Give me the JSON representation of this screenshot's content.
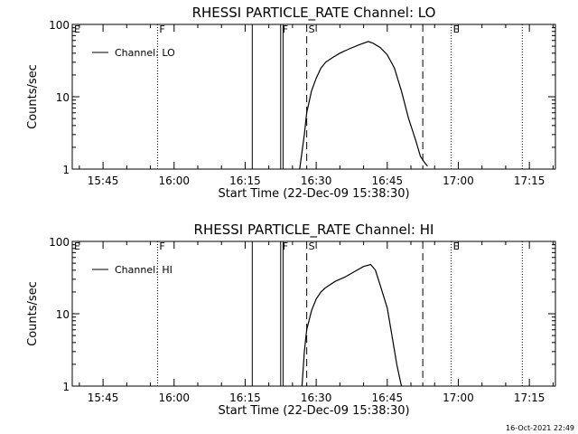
{
  "chart_data": [
    {
      "type": "line",
      "title": "RHESSI PARTICLE_RATE Channel: LO",
      "xlabel": "Start Time (22-Dec-09 15:38:30)",
      "ylabel": "Counts/sec",
      "y_scale": "log",
      "ylim": [
        1,
        100
      ],
      "xlim": [
        "15:38:30",
        "17:20:30"
      ],
      "x_ticks": [
        "15:45",
        "16:00",
        "16:15",
        "16:30",
        "16:45",
        "17:00",
        "17:15"
      ],
      "y_ticks": [
        "1",
        "10",
        "100"
      ],
      "legend": {
        "entries": [
          "Channel: LO"
        ],
        "placement": "top-left"
      },
      "grid": false,
      "markers": [
        {
          "time": "15:56:30",
          "label": "F",
          "style": "dotted"
        },
        {
          "time": "16:16:30",
          "label": "",
          "style": "solid"
        },
        {
          "time": "16:22:30",
          "label": "F",
          "style": "solid"
        },
        {
          "time": "16:23:00",
          "label": "",
          "style": "solid"
        },
        {
          "time": "16:28:00",
          "label": "S",
          "style": "dashed"
        },
        {
          "time": "16:52:30",
          "label": "",
          "style": "dashed"
        },
        {
          "time": "16:58:30",
          "label": "E",
          "style": "dotted"
        },
        {
          "time": "17:13:30",
          "label": "",
          "style": "dotted"
        }
      ],
      "edge_labels": [
        "E"
      ],
      "series": [
        {
          "x": [
            "16:26:30",
            "16:27:30",
            "16:28:00",
            "16:29:00",
            "16:30:00",
            "16:31:00",
            "16:32:00",
            "16:33:30",
            "16:35:00",
            "16:37:00",
            "16:39:00",
            "16:41:00",
            "16:42:00",
            "16:43:30",
            "16:45:00",
            "16:46:30",
            "16:48:00",
            "16:49:30",
            "16:51:00",
            "16:52:00",
            "16:53:00",
            "16:53:30"
          ],
          "values": [
            1,
            3,
            6,
            12,
            18,
            25,
            30,
            35,
            40,
            46,
            52,
            58,
            55,
            48,
            38,
            25,
            12,
            5,
            2.5,
            1.5,
            1.2,
            1.1
          ]
        }
      ]
    },
    {
      "type": "line",
      "title": "RHESSI PARTICLE_RATE Channel: HI",
      "xlabel": "Start Time (22-Dec-09 15:38:30)",
      "ylabel": "Counts/sec",
      "y_scale": "log",
      "ylim": [
        1,
        100
      ],
      "xlim": [
        "15:38:30",
        "17:20:30"
      ],
      "x_ticks": [
        "15:45",
        "16:00",
        "16:15",
        "16:30",
        "16:45",
        "17:00",
        "17:15"
      ],
      "y_ticks": [
        "1",
        "10",
        "100"
      ],
      "legend": {
        "entries": [
          "Channel: HI"
        ],
        "placement": "top-left"
      },
      "grid": false,
      "markers": [
        {
          "time": "15:56:30",
          "label": "F",
          "style": "dotted"
        },
        {
          "time": "16:16:30",
          "label": "",
          "style": "solid"
        },
        {
          "time": "16:22:30",
          "label": "F",
          "style": "solid"
        },
        {
          "time": "16:23:00",
          "label": "",
          "style": "solid"
        },
        {
          "time": "16:28:00",
          "label": "S",
          "style": "dashed"
        },
        {
          "time": "16:52:30",
          "label": "",
          "style": "dashed"
        },
        {
          "time": "16:58:30",
          "label": "E",
          "style": "dotted"
        },
        {
          "time": "17:13:30",
          "label": "",
          "style": "dotted"
        }
      ],
      "edge_labels": [
        "E"
      ],
      "series": [
        {
          "x": [
            "16:27:00",
            "16:27:30",
            "16:28:00",
            "16:29:00",
            "16:30:00",
            "16:31:00",
            "16:32:00",
            "16:34:00",
            "16:36:00",
            "16:38:00",
            "16:40:00",
            "16:41:30",
            "16:42:30",
            "16:43:30",
            "16:45:00",
            "16:46:00",
            "16:47:00",
            "16:48:00"
          ],
          "values": [
            1,
            3,
            6,
            11,
            16,
            20,
            23,
            28,
            32,
            38,
            45,
            48,
            40,
            25,
            12,
            5,
            2,
            1
          ]
        }
      ]
    }
  ],
  "footer": {
    "timestamp": "16-Oct-2021 22:49"
  }
}
